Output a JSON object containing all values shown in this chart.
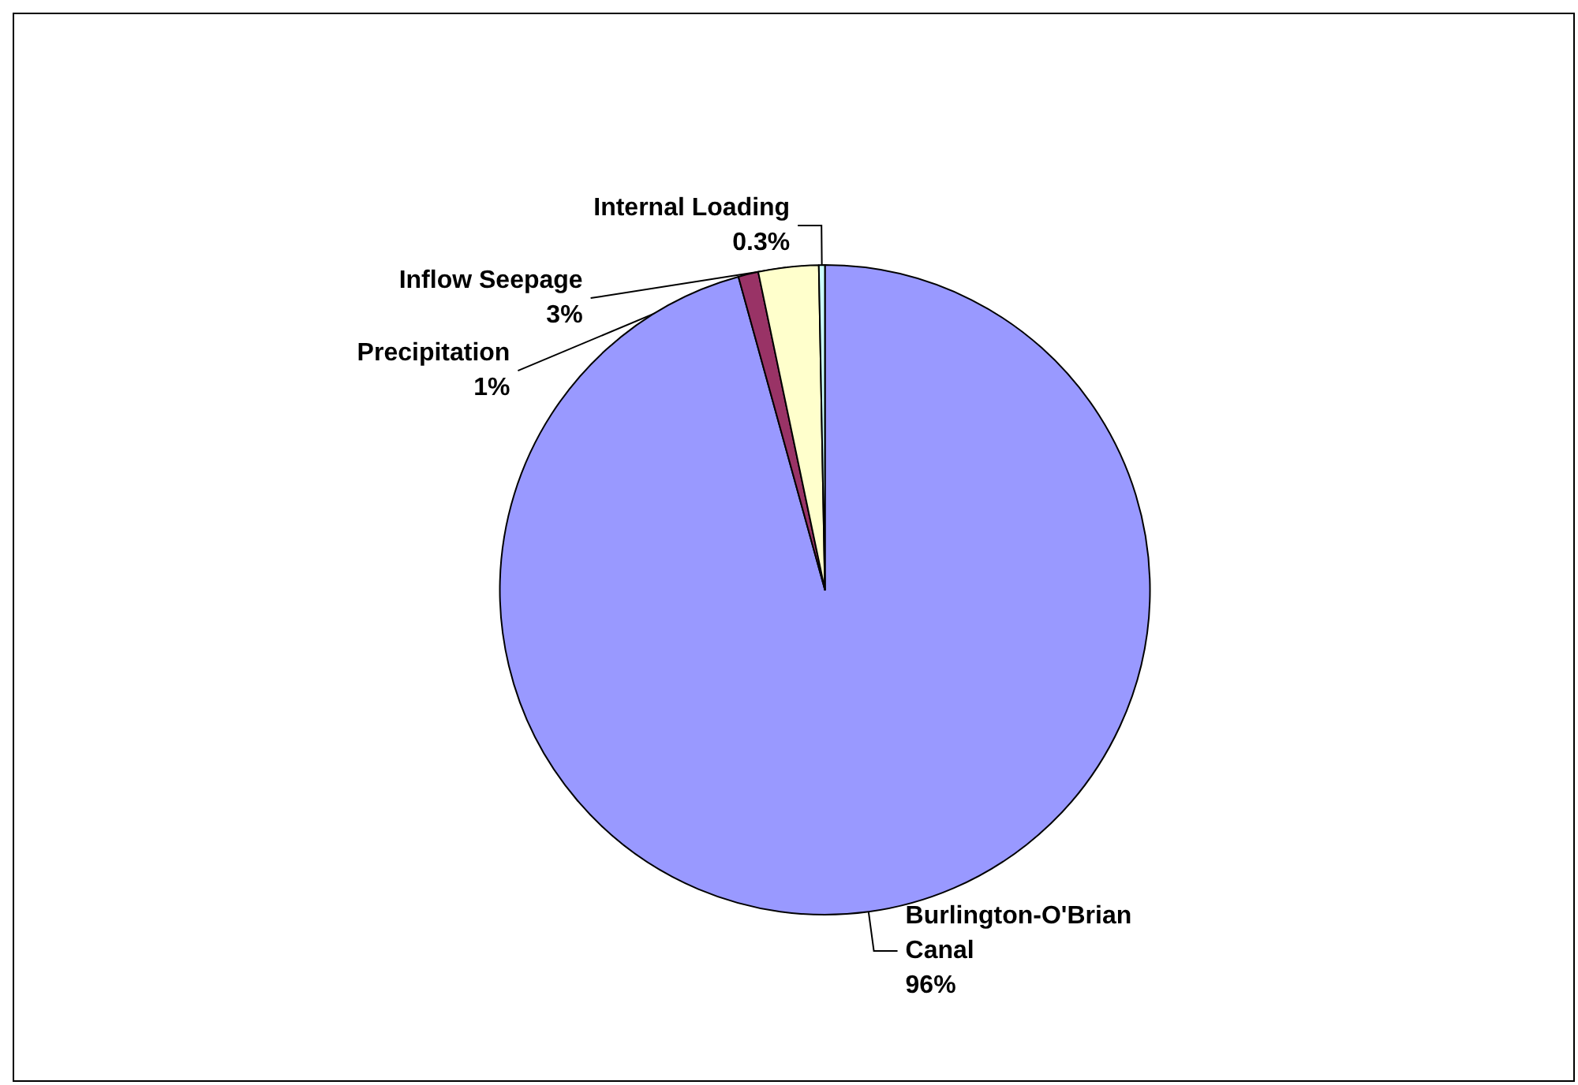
{
  "chart_data": {
    "type": "pie",
    "categories": [
      "Burlington-O'Brian Canal",
      "Precipitation",
      "Inflow Seepage",
      "Internal Loading"
    ],
    "values": [
      96,
      1,
      3,
      0.3
    ],
    "value_labels": [
      "96%",
      "1%",
      "3%",
      "0.3%"
    ],
    "colors": [
      "#9999ff",
      "#993366",
      "#ffffcc",
      "#ccffff"
    ],
    "legend": false
  }
}
